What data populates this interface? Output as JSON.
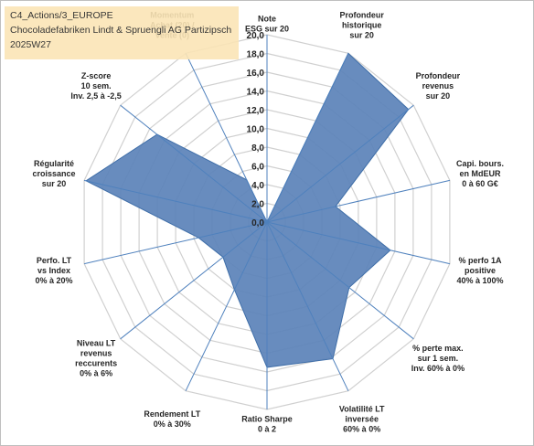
{
  "title": {
    "line1": "C4_Actions/3_EUROPE",
    "line2": "Chocoladefabriken Lindt & Spruengli AG Partizipsch",
    "line3": "2025W27"
  },
  "chart_data": {
    "type": "radar",
    "r_range": [
      0,
      20
    ],
    "ticks": [
      "0,0",
      "2,0",
      "4,0",
      "6,0",
      "8,0",
      "10,0",
      "12,0",
      "14,0",
      "16,0",
      "18,0",
      "20,0"
    ],
    "axes": [
      "Note\nESG sur 20",
      "Profondeur\nhistorique\nsur 20",
      "Profondeur\nrevenus\nsur 20",
      "Capi. bours.\nen MdEUR\n0 à 60 G€",
      "% perfo 1A\npositive\n40% à 100%",
      "% perte max.\nsur 1 sem.\nInv. 60% à 0%",
      "Volatilité LT\ninversée\n60% à 0%",
      "Ratio Sharpe\n0 à 2",
      "Rendement LT\n0% à 30%",
      "Niveau LT\nrevenus\nreccurents\n0% à 6%",
      "Perfo. LT\nvs Index\n0% à 20%",
      "Régularité\ncroissance\nsur 20",
      "Z-score\n10 sem.\nInv. 2,5 à -2,5",
      "Momentum\nAchat (20) /\nVente (0)"
    ],
    "values": [
      0,
      20,
      19.3,
      7.5,
      13.5,
      11.2,
      16.2,
      15.5,
      8,
      6,
      7.5,
      19.8,
      15,
      5
    ],
    "series_color": "#4f81bd",
    "fill_color": "#5b82b8",
    "grid": true
  }
}
